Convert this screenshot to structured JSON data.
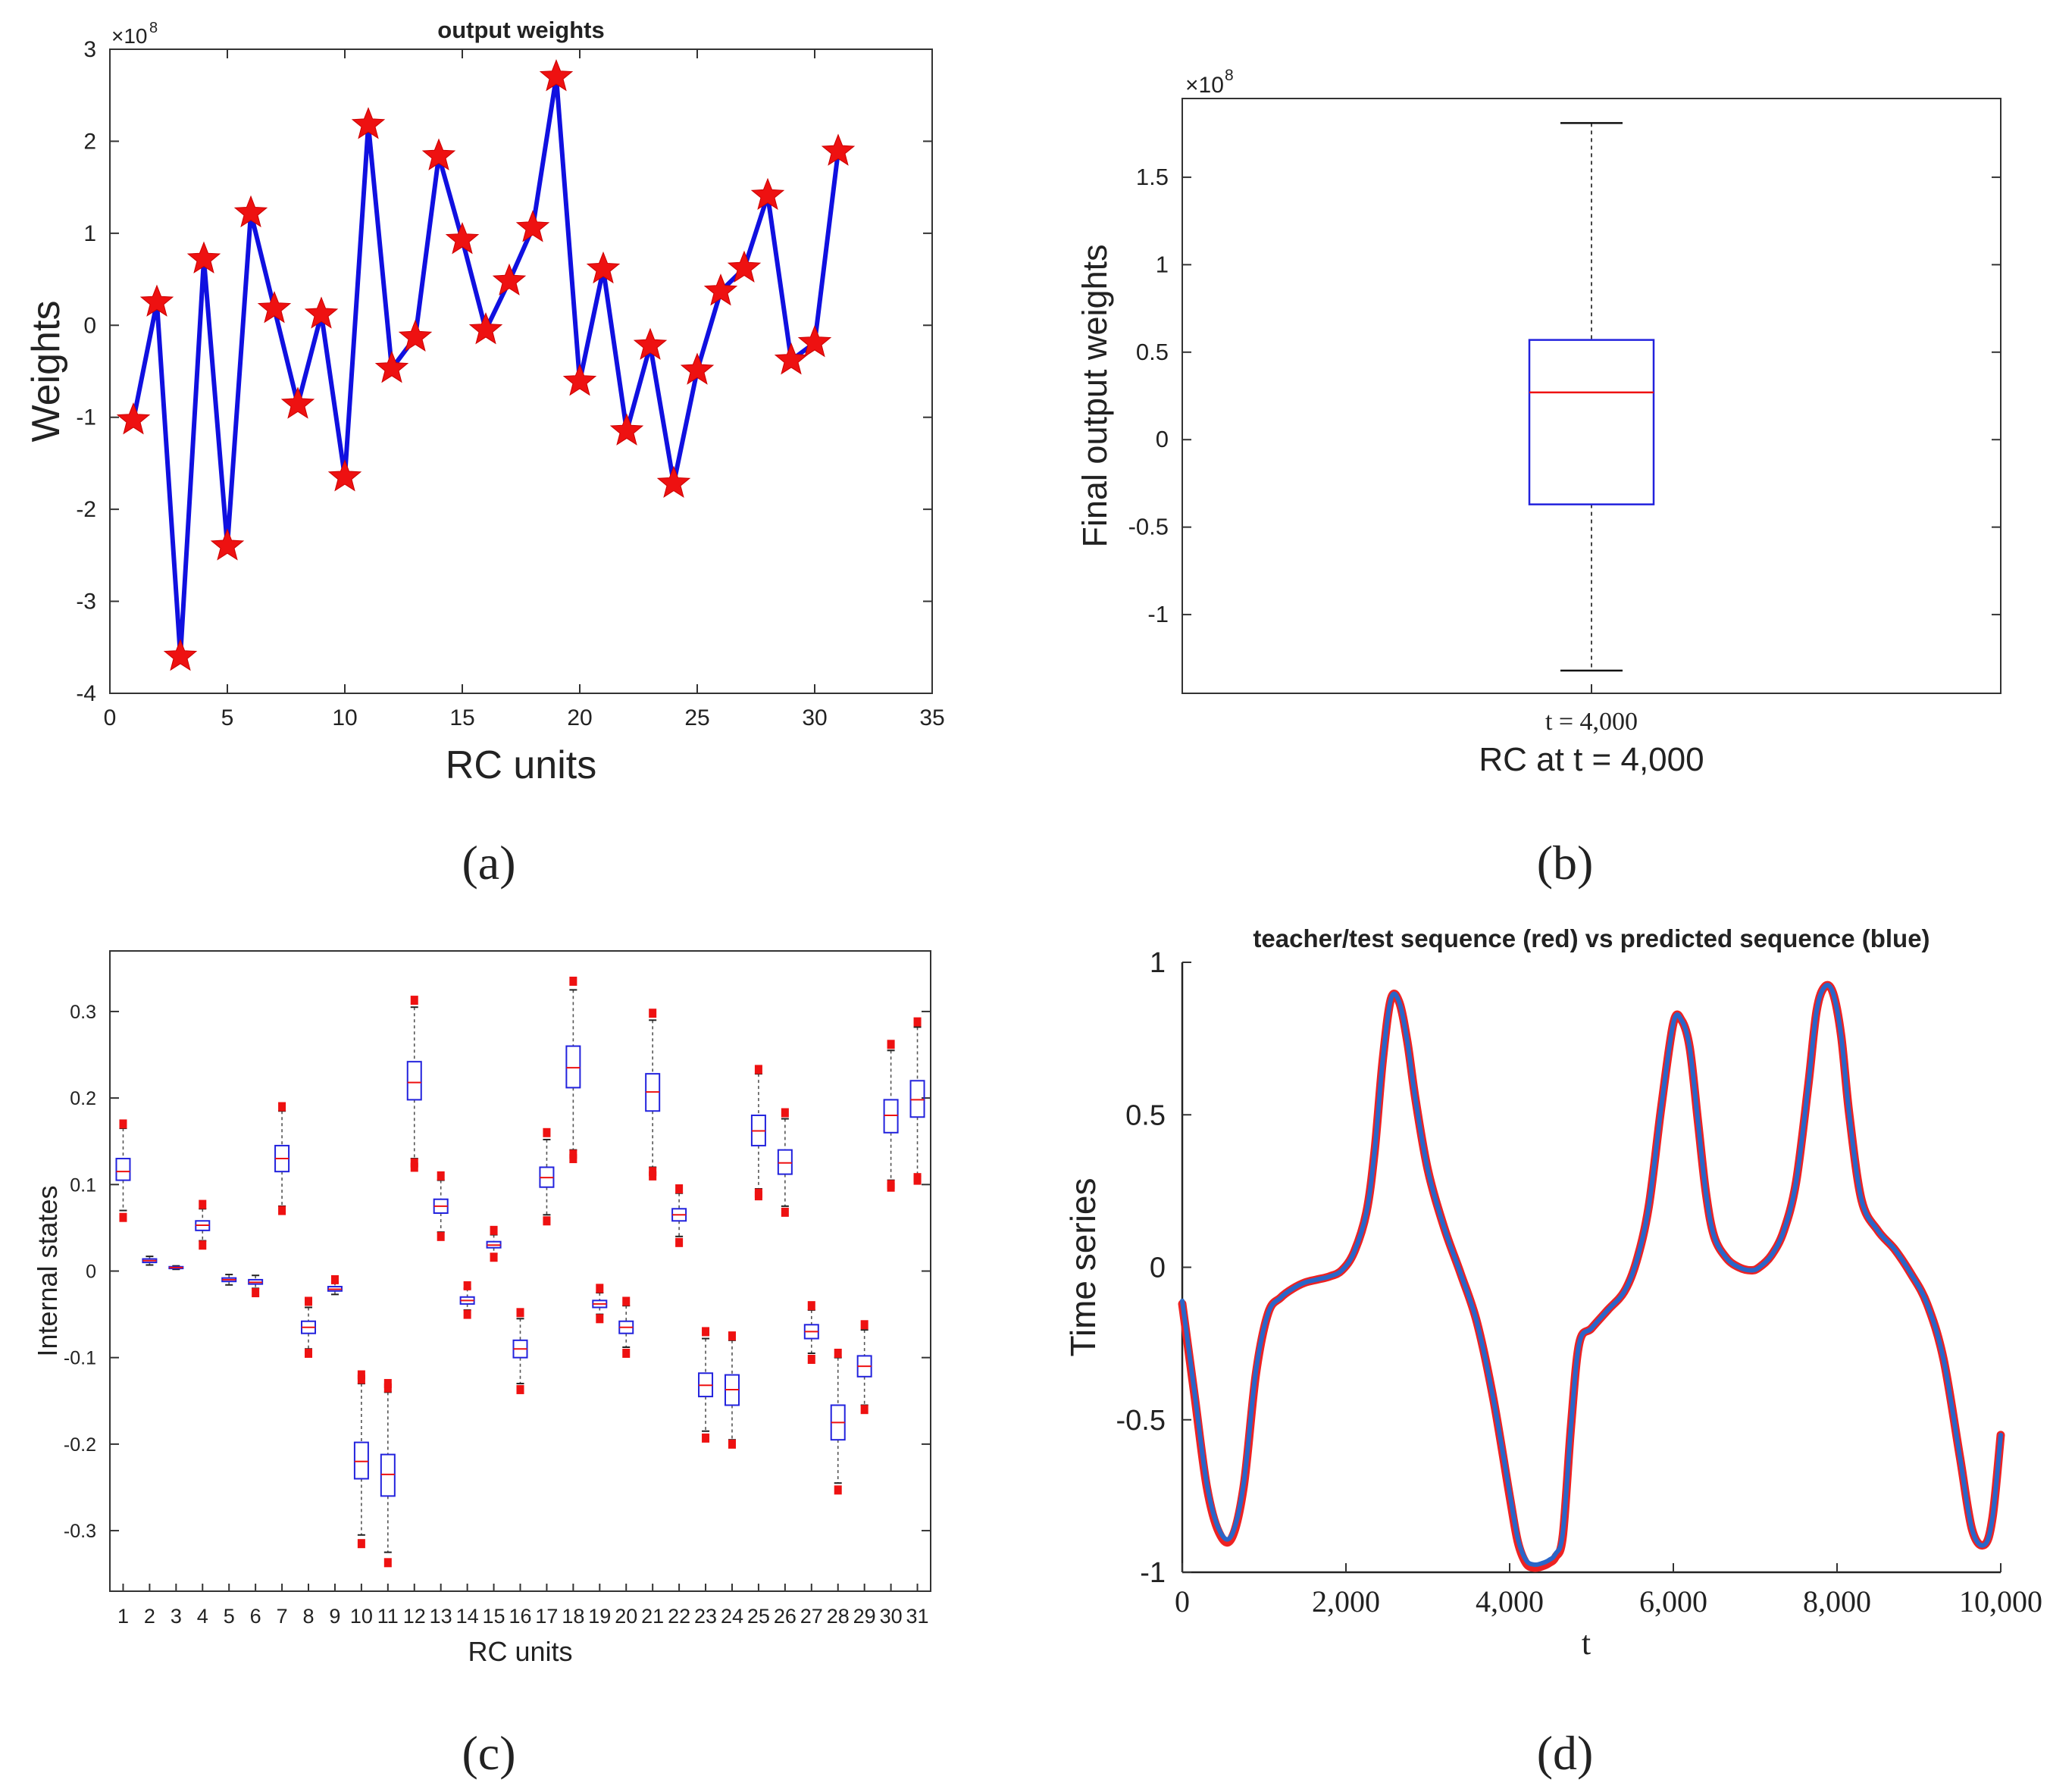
{
  "panel_labels": [
    "(a)",
    "(b)",
    "(c)",
    "(d)"
  ],
  "chart_data": [
    {
      "id": "a",
      "type": "line",
      "title": "output weights",
      "xlabel": "RC units",
      "ylabel": "Weights",
      "exponent_label": "×10",
      "exponent_power": "8",
      "xlim": [
        0,
        35
      ],
      "ylim": [
        -4,
        3
      ],
      "xticks": [
        0,
        5,
        10,
        15,
        20,
        25,
        30,
        35
      ],
      "yticks": [
        -4,
        -3,
        -2,
        -1,
        0,
        1,
        2,
        3
      ],
      "line_color": "#1010e0",
      "marker_color": "#ee1111",
      "x": [
        1,
        2,
        3,
        4,
        5,
        6,
        7,
        8,
        9,
        10,
        11,
        12,
        13,
        14,
        15,
        16,
        17,
        18,
        19,
        20,
        21,
        22,
        23,
        24,
        25,
        26,
        27,
        28,
        29,
        30,
        31
      ],
      "y": [
        -1.03,
        0.25,
        -3.6,
        0.72,
        -2.4,
        1.22,
        0.18,
        -0.86,
        0.12,
        -1.65,
        2.18,
        -0.47,
        -0.13,
        1.84,
        0.93,
        -0.05,
        0.48,
        1.06,
        2.7,
        -0.61,
        0.61,
        -1.15,
        -0.22,
        -1.72,
        -0.49,
        0.37,
        0.62,
        1.41,
        -0.38,
        -0.19,
        1.89
      ]
    },
    {
      "id": "b",
      "type": "box",
      "xlabel": "RC at t = 4,000",
      "ylabel": "Final output weights",
      "category": "t = 4,000",
      "exponent_label": "×10",
      "exponent_power": "8",
      "ylim": [
        -1.45,
        1.95
      ],
      "yticks": [
        -1,
        -0.5,
        0,
        0.5,
        1,
        1.5
      ],
      "box_color": "#2222dd",
      "median_color": "#ee1111",
      "whisker_low": -1.32,
      "q1": -0.37,
      "median": 0.27,
      "q3": 0.57,
      "whisker_high": 1.81
    },
    {
      "id": "c",
      "type": "box",
      "xlabel": "RC units",
      "ylabel": "Internal states",
      "ylim": [
        -0.37,
        0.37
      ],
      "yticks": [
        -0.3,
        -0.2,
        -0.1,
        0,
        0.1,
        0.2,
        0.3
      ],
      "categories": [
        "1",
        "2",
        "3",
        "4",
        "5",
        "6",
        "7",
        "8",
        "9",
        "10",
        "11",
        "12",
        "13",
        "14",
        "15",
        "16",
        "17",
        "18",
        "19",
        "20",
        "21",
        "22",
        "23",
        "24",
        "25",
        "26",
        "27",
        "28",
        "29",
        "30",
        "31"
      ],
      "box_color": "#2222dd",
      "median_color": "#ee1111",
      "outlier_color": "#ee1111",
      "boxes": [
        {
          "wl": 0.07,
          "q1": 0.105,
          "med": 0.115,
          "q3": 0.13,
          "wh": 0.165,
          "out": [
            0.062,
            0.17
          ]
        },
        {
          "wl": 0.007,
          "q1": 0.01,
          "med": 0.012,
          "q3": 0.014,
          "wh": 0.017,
          "out": []
        },
        {
          "wl": 0.002,
          "q1": 0.003,
          "med": 0.004,
          "q3": 0.005,
          "wh": 0.006,
          "out": []
        },
        {
          "wl": 0.035,
          "q1": 0.047,
          "med": 0.053,
          "q3": 0.058,
          "wh": 0.072,
          "out": [
            0.03,
            0.077
          ]
        },
        {
          "wl": -0.016,
          "q1": -0.012,
          "med": -0.01,
          "q3": -0.008,
          "wh": -0.004,
          "out": []
        },
        {
          "wl": -0.02,
          "q1": -0.015,
          "med": -0.013,
          "q3": -0.01,
          "wh": -0.005,
          "out": [
            -0.025
          ]
        },
        {
          "wl": 0.075,
          "q1": 0.115,
          "med": 0.13,
          "q3": 0.145,
          "wh": 0.185,
          "out": [
            0.07,
            0.19
          ]
        },
        {
          "wl": -0.09,
          "q1": -0.072,
          "med": -0.065,
          "q3": -0.058,
          "wh": -0.042,
          "out": [
            -0.095,
            -0.035
          ]
        },
        {
          "wl": -0.027,
          "q1": -0.023,
          "med": -0.021,
          "q3": -0.018,
          "wh": -0.013,
          "out": [
            -0.01
          ]
        },
        {
          "wl": -0.305,
          "q1": -0.24,
          "med": -0.22,
          "q3": -0.198,
          "wh": -0.13,
          "out": [
            -0.315,
            -0.125,
            -0.12
          ]
        },
        {
          "wl": -0.325,
          "q1": -0.26,
          "med": -0.235,
          "q3": -0.212,
          "wh": -0.14,
          "out": [
            -0.337,
            -0.135,
            -0.13
          ]
        },
        {
          "wl": 0.13,
          "q1": 0.198,
          "med": 0.218,
          "q3": 0.242,
          "wh": 0.305,
          "out": [
            0.12,
            0.125,
            0.313
          ]
        },
        {
          "wl": 0.045,
          "q1": 0.067,
          "med": 0.075,
          "q3": 0.083,
          "wh": 0.105,
          "out": [
            0.04,
            0.11
          ]
        },
        {
          "wl": -0.045,
          "q1": -0.038,
          "med": -0.034,
          "q3": -0.03,
          "wh": -0.02,
          "out": [
            -0.05,
            -0.017
          ]
        },
        {
          "wl": 0.02,
          "q1": 0.027,
          "med": 0.03,
          "q3": 0.034,
          "wh": 0.042,
          "out": [
            0.016,
            0.047
          ]
        },
        {
          "wl": -0.13,
          "q1": -0.1,
          "med": -0.09,
          "q3": -0.08,
          "wh": -0.055,
          "out": [
            -0.137,
            -0.048
          ]
        },
        {
          "wl": 0.065,
          "q1": 0.097,
          "med": 0.108,
          "q3": 0.12,
          "wh": 0.152,
          "out": [
            0.058,
            0.16
          ]
        },
        {
          "wl": 0.14,
          "q1": 0.212,
          "med": 0.235,
          "q3": 0.26,
          "wh": 0.325,
          "out": [
            0.13,
            0.135,
            0.335
          ]
        },
        {
          "wl": -0.05,
          "q1": -0.042,
          "med": -0.038,
          "q3": -0.034,
          "wh": -0.025,
          "out": [
            -0.055,
            -0.02
          ]
        },
        {
          "wl": -0.088,
          "q1": -0.072,
          "med": -0.065,
          "q3": -0.058,
          "wh": -0.04,
          "out": [
            -0.095,
            -0.035
          ]
        },
        {
          "wl": 0.12,
          "q1": 0.185,
          "med": 0.207,
          "q3": 0.228,
          "wh": 0.29,
          "out": [
            0.11,
            0.115,
            0.298
          ]
        },
        {
          "wl": 0.04,
          "q1": 0.058,
          "med": 0.065,
          "q3": 0.072,
          "wh": 0.09,
          "out": [
            0.033,
            0.095
          ]
        },
        {
          "wl": -0.185,
          "q1": -0.145,
          "med": -0.132,
          "q3": -0.118,
          "wh": -0.078,
          "out": [
            -0.193,
            -0.07
          ]
        },
        {
          "wl": -0.195,
          "q1": -0.155,
          "med": -0.137,
          "q3": -0.12,
          "wh": -0.08,
          "out": [
            -0.2,
            -0.075
          ]
        },
        {
          "wl": 0.095,
          "q1": 0.145,
          "med": 0.162,
          "q3": 0.18,
          "wh": 0.228,
          "out": [
            0.087,
            0.09,
            0.233
          ]
        },
        {
          "wl": 0.075,
          "q1": 0.112,
          "med": 0.125,
          "q3": 0.14,
          "wh": 0.176,
          "out": [
            0.068,
            0.183
          ]
        },
        {
          "wl": -0.095,
          "q1": -0.078,
          "med": -0.07,
          "q3": -0.062,
          "wh": -0.045,
          "out": [
            -0.102,
            -0.04
          ]
        },
        {
          "wl": -0.245,
          "q1": -0.195,
          "med": -0.175,
          "q3": -0.155,
          "wh": -0.1,
          "out": [
            -0.253,
            -0.095
          ]
        },
        {
          "wl": -0.155,
          "q1": -0.122,
          "med": -0.11,
          "q3": -0.098,
          "wh": -0.068,
          "out": [
            -0.16,
            -0.062
          ]
        },
        {
          "wl": 0.105,
          "q1": 0.16,
          "med": 0.18,
          "q3": 0.198,
          "wh": 0.255,
          "out": [
            0.097,
            0.1,
            0.262
          ]
        },
        {
          "wl": 0.11,
          "q1": 0.178,
          "med": 0.198,
          "q3": 0.22,
          "wh": 0.282,
          "out": [
            0.105,
            0.108,
            0.288
          ]
        }
      ]
    },
    {
      "id": "d",
      "type": "line",
      "title": "teacher/test sequence (red) vs predicted sequence (blue)",
      "xlabel": "t",
      "ylabel": "Time series",
      "xlim": [
        0,
        10000
      ],
      "ylim": [
        -1,
        1
      ],
      "xticks": [
        0,
        2000,
        4000,
        6000,
        8000,
        10000
      ],
      "xtick_labels": [
        "0",
        "2,000",
        "4,000",
        "6,000",
        "8,000",
        "10,000"
      ],
      "yticks": [
        -1,
        -0.5,
        0,
        0.5,
        1
      ],
      "series": [
        {
          "name": "teacher/test sequence",
          "color": "#ee2222",
          "x": [
            0,
            150,
            300,
            450,
            600,
            750,
            900,
            1050,
            1200,
            1350,
            1500,
            1650,
            1800,
            1950,
            2100,
            2250,
            2350,
            2450,
            2550,
            2650,
            2750,
            2850,
            3000,
            3200,
            3400,
            3600,
            3800,
            4000,
            4100,
            4200,
            4300,
            4400,
            4480,
            4560,
            4650,
            4750,
            4850,
            5000,
            5200,
            5400,
            5550,
            5700,
            5850,
            6000,
            6100,
            6200,
            6300,
            6400,
            6500,
            6650,
            6800,
            6950,
            7050,
            7200,
            7350,
            7500,
            7650,
            7750,
            7850,
            7950,
            8050,
            8150,
            8300,
            8500,
            8700,
            8900,
            9100,
            9300,
            9500,
            9650,
            9800,
            9900,
            10000
          ],
          "y": [
            -0.12,
            -0.42,
            -0.72,
            -0.87,
            -0.89,
            -0.72,
            -0.35,
            -0.15,
            -0.1,
            -0.07,
            -0.05,
            -0.04,
            -0.03,
            -0.01,
            0.05,
            0.18,
            0.38,
            0.68,
            0.88,
            0.87,
            0.74,
            0.55,
            0.32,
            0.13,
            -0.02,
            -0.18,
            -0.43,
            -0.75,
            -0.9,
            -0.97,
            -0.985,
            -0.98,
            -0.97,
            -0.95,
            -0.88,
            -0.52,
            -0.25,
            -0.2,
            -0.14,
            -0.08,
            0.02,
            0.2,
            0.52,
            0.8,
            0.81,
            0.72,
            0.48,
            0.24,
            0.1,
            0.03,
            0.0,
            -0.01,
            0.0,
            0.04,
            0.12,
            0.28,
            0.6,
            0.84,
            0.92,
            0.9,
            0.76,
            0.5,
            0.22,
            0.12,
            0.06,
            -0.02,
            -0.12,
            -0.3,
            -0.62,
            -0.86,
            -0.91,
            -0.82,
            -0.55
          ]
        },
        {
          "name": "predicted sequence",
          "color": "#2a66c8",
          "x": [
            0,
            150,
            300,
            450,
            600,
            750,
            900,
            1050,
            1200,
            1350,
            1500,
            1650,
            1800,
            1950,
            2100,
            2250,
            2350,
            2450,
            2550,
            2650,
            2750,
            2850,
            3000,
            3200,
            3400,
            3600,
            3800,
            4000,
            4100,
            4200,
            4300,
            4400,
            4480,
            4560,
            4650,
            4750,
            4850,
            5000,
            5200,
            5400,
            5550,
            5700,
            5850,
            6000,
            6100,
            6200,
            6300,
            6400,
            6500,
            6650,
            6800,
            6950,
            7050,
            7200,
            7350,
            7500,
            7650,
            7750,
            7850,
            7950,
            8050,
            8150,
            8300,
            8500,
            8700,
            8900,
            9100,
            9300,
            9500,
            9650,
            9800,
            9900,
            10000
          ],
          "y": [
            -0.11,
            -0.41,
            -0.71,
            -0.86,
            -0.88,
            -0.71,
            -0.34,
            -0.15,
            -0.1,
            -0.07,
            -0.05,
            -0.04,
            -0.03,
            -0.01,
            0.05,
            0.18,
            0.38,
            0.68,
            0.88,
            0.87,
            0.74,
            0.55,
            0.32,
            0.13,
            -0.02,
            -0.18,
            -0.43,
            -0.74,
            -0.89,
            -0.96,
            -0.975,
            -0.97,
            -0.96,
            -0.94,
            -0.87,
            -0.52,
            -0.25,
            -0.2,
            -0.14,
            -0.08,
            0.02,
            0.2,
            0.52,
            0.8,
            0.81,
            0.72,
            0.48,
            0.24,
            0.1,
            0.03,
            0.0,
            -0.01,
            0.0,
            0.04,
            0.12,
            0.28,
            0.6,
            0.84,
            0.92,
            0.9,
            0.76,
            0.5,
            0.22,
            0.12,
            0.06,
            -0.02,
            -0.12,
            -0.3,
            -0.62,
            -0.86,
            -0.91,
            -0.82,
            -0.55
          ]
        }
      ]
    }
  ]
}
